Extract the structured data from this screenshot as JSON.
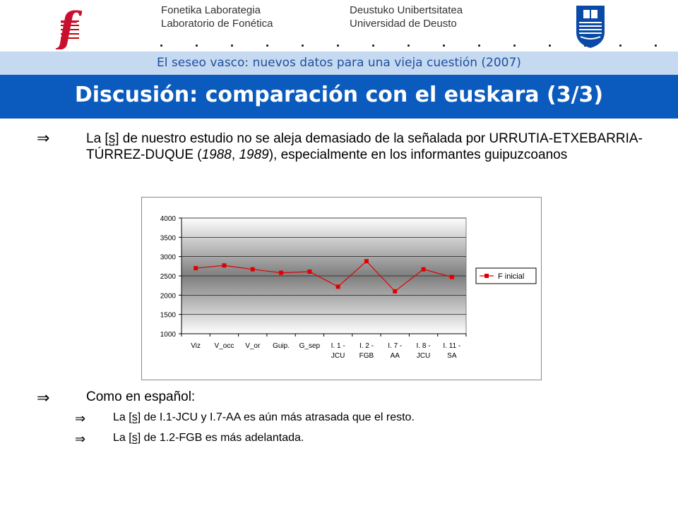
{
  "header": {
    "left_line1": "Fonetika Laborategia",
    "left_line2": "Laboratorio de Fonética",
    "right_line1": "Deustuko Unibertsitatea",
    "right_line2": "Universidad de Deusto",
    "dots": ". . . . . . . . . . . . . . . .",
    "logo_left_icon": "phonetics-lab-f-logo",
    "logo_right_icon": "university-shield-logo"
  },
  "subtitle": "El seseo vasco: nuevos datos para una vieja cuestión (2007)",
  "title": "Discusión: comparación con el euskara (3/3)",
  "colors": {
    "title_bar": "#0a5bbd",
    "subtitle_bar": "#c5d9f1",
    "series": "#e00000"
  },
  "bullets": {
    "arrow": "⇒",
    "b1_a": "La [",
    "b1_sym": "s̺",
    "b1_b": "] de nuestro estudio no se aleja demasiado de la señalada por URRUTIA-ETXEBARRIA-TÚRREZ-DUQUE (",
    "b1_y1": "1988",
    "b1_c": ", ",
    "b1_y2": "1989",
    "b1_d": "), especialmente en los informantes guipuzcoanos",
    "b2": "Como en español:",
    "s1_a": "La [",
    "s1_sym": "s̺",
    "s1_b": "] de I.1-JCU y I.7-AA es aún más atrasada que el resto.",
    "s2_a": "La [",
    "s2_sym": "s̺",
    "s2_b": "] de 1.2-FGB es más adelantada."
  },
  "chart_data": {
    "type": "line",
    "categories": [
      [
        "Viz"
      ],
      [
        "V_occ"
      ],
      [
        "V_or"
      ],
      [
        "Guip."
      ],
      [
        "G_sep"
      ],
      [
        "I. 1 -",
        "JCU"
      ],
      [
        "I. 2 -",
        "FGB"
      ],
      [
        "I. 7 -",
        "AA"
      ],
      [
        "I. 8 -",
        "JCU"
      ],
      [
        "I. 11 -",
        "SA"
      ]
    ],
    "series": [
      {
        "name": "F inicial",
        "values": [
          2700,
          2770,
          2670,
          2580,
          2610,
          2220,
          2880,
          2100,
          2670,
          2470
        ]
      }
    ],
    "ylim": [
      1000,
      4000
    ],
    "yticks": [
      1000,
      1500,
      2000,
      2500,
      3000,
      3500,
      4000
    ],
    "grid": true,
    "legend": "right"
  }
}
